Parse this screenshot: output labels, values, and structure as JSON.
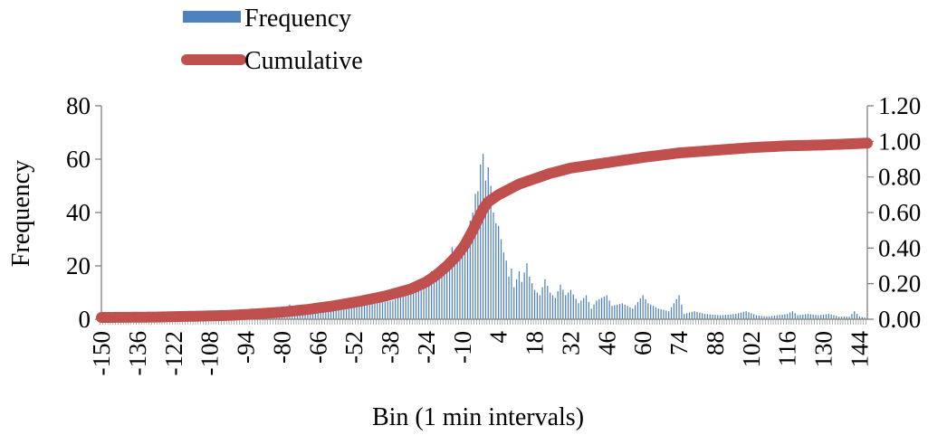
{
  "colors": {
    "frequency": "#4F81BD",
    "cumulative": "#C0504D",
    "axis": "#7f7f7f"
  },
  "chart_data": {
    "type": "bar",
    "title": "",
    "xlabel": "Bin (1 min intervals)",
    "ylabel": "Frequency",
    "y2label": "",
    "legend_position": "top-left",
    "ylim": [
      0,
      80
    ],
    "y2lim": [
      0,
      1.2
    ],
    "y_ticks": [
      "0",
      "20",
      "40",
      "60",
      "80"
    ],
    "y2_ticks": [
      "0.00",
      "0.20",
      "0.40",
      "0.60",
      "0.80",
      "1.00",
      "1.20"
    ],
    "x_ticks": [
      "-150",
      "-136",
      "-122",
      "-108",
      "-94",
      "-80",
      "-66",
      "-52",
      "-38",
      "-24",
      "-10",
      "4",
      "18",
      "32",
      "46",
      "60",
      "74",
      "88",
      "102",
      "116",
      "130",
      "144"
    ],
    "x": {
      "start": -150,
      "end": 147,
      "step": 1
    },
    "series": [
      {
        "name": "Frequency",
        "type": "bar",
        "axis": "left",
        "peaks": [
          [
            -150,
            0.5
          ],
          [
            -130,
            0.5
          ],
          [
            -110,
            0.8
          ],
          [
            -100,
            1
          ],
          [
            -90,
            1.2
          ],
          [
            -80,
            2
          ],
          [
            -77,
            5.5
          ],
          [
            -70,
            2.5
          ],
          [
            -66,
            4
          ],
          [
            -60,
            3
          ],
          [
            -55,
            4
          ],
          [
            -50,
            5
          ],
          [
            -48,
            8.5
          ],
          [
            -45,
            6
          ],
          [
            -40,
            6.5
          ],
          [
            -37,
            7
          ],
          [
            -33,
            9
          ],
          [
            -30,
            11
          ],
          [
            -28,
            10
          ],
          [
            -25,
            14
          ],
          [
            -22,
            18
          ],
          [
            -20,
            17
          ],
          [
            -18,
            21
          ],
          [
            -16,
            20
          ],
          [
            -14,
            27
          ],
          [
            -12,
            25
          ],
          [
            -10,
            30
          ],
          [
            -8,
            28
          ],
          [
            -7,
            37
          ],
          [
            -6,
            40
          ],
          [
            -5,
            47
          ],
          [
            -4,
            48
          ],
          [
            -3,
            58
          ],
          [
            -2,
            62
          ],
          [
            -1,
            52
          ],
          [
            0,
            57
          ],
          [
            1,
            50
          ],
          [
            2,
            40
          ],
          [
            3,
            36
          ],
          [
            4,
            35
          ],
          [
            5,
            30
          ],
          [
            6,
            25
          ],
          [
            7,
            22
          ],
          [
            8,
            16
          ],
          [
            9,
            19
          ],
          [
            10,
            12
          ],
          [
            12,
            18
          ],
          [
            13,
            14
          ],
          [
            15,
            21
          ],
          [
            16,
            16
          ],
          [
            18,
            11
          ],
          [
            20,
            9
          ],
          [
            22,
            15
          ],
          [
            24,
            10
          ],
          [
            26,
            8
          ],
          [
            28,
            13
          ],
          [
            30,
            9
          ],
          [
            32,
            11
          ],
          [
            35,
            6
          ],
          [
            38,
            9
          ],
          [
            40,
            4
          ],
          [
            42,
            7
          ],
          [
            44,
            8
          ],
          [
            46,
            9
          ],
          [
            48,
            5
          ],
          [
            52,
            6
          ],
          [
            56,
            4
          ],
          [
            60,
            9
          ],
          [
            62,
            6
          ],
          [
            66,
            4
          ],
          [
            70,
            3
          ],
          [
            74,
            9
          ],
          [
            76,
            2
          ],
          [
            80,
            3
          ],
          [
            84,
            2
          ],
          [
            90,
            1.5
          ],
          [
            96,
            2
          ],
          [
            100,
            3
          ],
          [
            104,
            1.5
          ],
          [
            108,
            1
          ],
          [
            112,
            1.5
          ],
          [
            116,
            2
          ],
          [
            118,
            3
          ],
          [
            120,
            1.5
          ],
          [
            124,
            2
          ],
          [
            128,
            1.5
          ],
          [
            132,
            2
          ],
          [
            136,
            1
          ],
          [
            140,
            1
          ],
          [
            142,
            3
          ],
          [
            144,
            1
          ],
          [
            147,
            0.5
          ]
        ]
      },
      {
        "name": "Cumulative",
        "type": "line",
        "axis": "right",
        "points": [
          [
            -150,
            0.01
          ],
          [
            -130,
            0.012
          ],
          [
            -110,
            0.018
          ],
          [
            -100,
            0.022
          ],
          [
            -90,
            0.03
          ],
          [
            -80,
            0.04
          ],
          [
            -70,
            0.055
          ],
          [
            -60,
            0.075
          ],
          [
            -50,
            0.1
          ],
          [
            -40,
            0.13
          ],
          [
            -30,
            0.17
          ],
          [
            -24,
            0.21
          ],
          [
            -20,
            0.25
          ],
          [
            -16,
            0.3
          ],
          [
            -12,
            0.36
          ],
          [
            -9,
            0.42
          ],
          [
            -6,
            0.5
          ],
          [
            -4,
            0.56
          ],
          [
            -2,
            0.62
          ],
          [
            0,
            0.66
          ],
          [
            4,
            0.7
          ],
          [
            8,
            0.73
          ],
          [
            12,
            0.76
          ],
          [
            18,
            0.79
          ],
          [
            24,
            0.82
          ],
          [
            32,
            0.85
          ],
          [
            46,
            0.88
          ],
          [
            60,
            0.91
          ],
          [
            74,
            0.935
          ],
          [
            88,
            0.95
          ],
          [
            102,
            0.965
          ],
          [
            116,
            0.975
          ],
          [
            130,
            0.98
          ],
          [
            147,
            0.99
          ]
        ]
      }
    ]
  }
}
